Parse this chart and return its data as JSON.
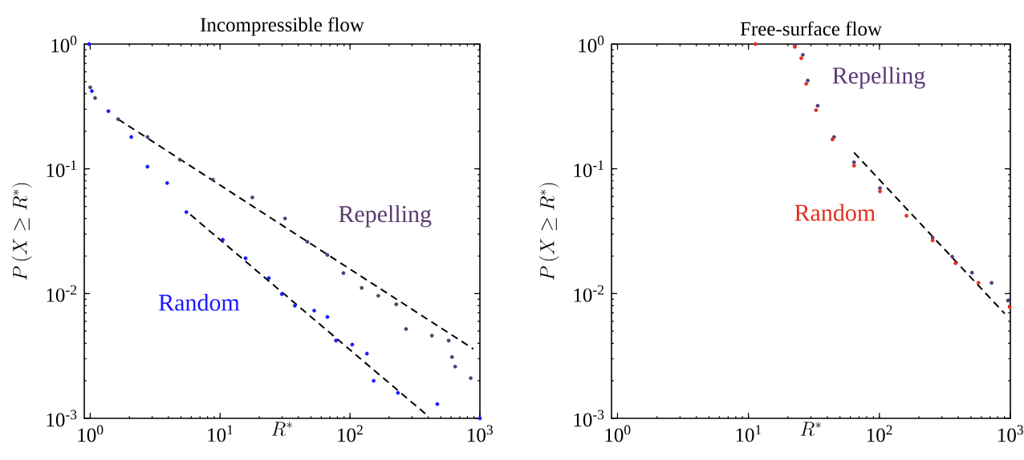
{
  "chart_data": [
    {
      "type": "scatter",
      "title": "Incompressible flow",
      "xlabel": "R^*",
      "ylabel": "P\\left(X \\geq R^*\\right)",
      "log": "xy",
      "grid": false,
      "legend": false,
      "marker": "circle",
      "xlim": [
        0.9,
        1000
      ],
      "ylim": [
        0.001,
        1
      ],
      "xticks": [
        {
          "value": 1,
          "label": "10$^{0}$"
        },
        {
          "value": 10,
          "label": "10$^{1}$"
        },
        {
          "value": 100,
          "label": "10$^{2}$"
        },
        {
          "value": 1000,
          "label": "10$^{3}$"
        }
      ],
      "yticks": [
        {
          "value": 0.001,
          "label": "10$^{-3}$"
        },
        {
          "value": 0.01,
          "label": "10$^{-2}$"
        },
        {
          "value": 0.1,
          "label": "10$^{-1}$"
        },
        {
          "value": 1,
          "label": "10$^{0}$"
        }
      ],
      "series": [
        {
          "name": "Repelling",
          "color": "#5a3a6e",
          "x": [
            1.0,
            1.09,
            1.64,
            2.76,
            4.9,
            8.8,
            17.7,
            31.6,
            47,
            67,
            89,
            123,
            165,
            227,
            270,
            427,
            575,
            610,
            645,
            850
          ],
          "values": [
            0.45,
            0.37,
            0.25,
            0.18,
            0.118,
            0.082,
            0.059,
            0.04,
            0.026,
            0.0204,
            0.0146,
            0.0111,
            0.0096,
            0.0082,
            0.0052,
            0.0046,
            0.0042,
            0.0031,
            0.0026,
            0.0021
          ]
        },
        {
          "name": "Random",
          "color": "#1a1aff",
          "x": [
            0.98,
            1.03,
            1.38,
            2.07,
            2.76,
            3.91,
            5.5,
            10.5,
            15.7,
            23.7,
            29.9,
            37.6,
            53,
            67,
            78,
            104,
            135,
            152,
            234,
            470,
            1000
          ],
          "values": [
            1,
            0.42,
            0.29,
            0.18,
            0.104,
            0.077,
            0.045,
            0.027,
            0.0192,
            0.0133,
            0.0099,
            0.008,
            0.0073,
            0.0065,
            0.0042,
            0.0039,
            0.0033,
            0.002,
            0.0016,
            0.0013,
            0.001
          ]
        },
        {
          "type": "line",
          "color": "#000000",
          "line_style": "dashed",
          "marker": "none",
          "x": [
            1.64,
            891
          ],
          "values": [
            0.25,
            0.0036
          ]
        },
        {
          "type": "line",
          "color": "#000000",
          "line_style": "dashed",
          "marker": "none",
          "x": [
            5.9,
            384
          ],
          "values": [
            0.043,
            0.00108
          ]
        }
      ]
    },
    {
      "type": "scatter",
      "title": "Free-surface flow",
      "xlabel": "R^*",
      "ylabel": "P\\left(X \\geq R^*\\right)",
      "log": "xy",
      "grid": false,
      "legend": false,
      "marker": "circle",
      "xlim": [
        0.9,
        1000
      ],
      "ylim": [
        0.001,
        1
      ],
      "xticks": [
        {
          "value": 1,
          "label": "10$^{0}$"
        },
        {
          "value": 10,
          "label": "10$^{1}$"
        },
        {
          "value": 100,
          "label": "10$^{2}$"
        },
        {
          "value": 1000,
          "label": "10$^{3}$"
        }
      ],
      "yticks": [
        {
          "value": 0.001,
          "label": "10$^{-3}$"
        },
        {
          "value": 0.01,
          "label": "10$^{-2}$"
        },
        {
          "value": 0.1,
          "label": "10$^{-1}$"
        },
        {
          "value": 1,
          "label": "10$^{0}$"
        }
      ],
      "series": [
        {
          "name": "Repelling",
          "color": "#5b3a78",
          "x": [
            22.6,
            26,
            28.4,
            33.8,
            45,
            64,
            101,
            255,
            360,
            509,
            719,
            960
          ],
          "values": [
            0.98,
            0.82,
            0.51,
            0.32,
            0.18,
            0.113,
            0.07,
            0.028,
            0.0198,
            0.0147,
            0.0122,
            0.0088
          ]
        },
        {
          "name": "Random",
          "color": "#e0301e",
          "x": [
            11.3,
            22.6,
            25.3,
            27.6,
            32.8,
            43.8,
            64,
            101,
            161,
            255,
            381,
            571,
            988
          ],
          "values": [
            1,
            0.95,
            0.77,
            0.48,
            0.295,
            0.172,
            0.106,
            0.066,
            0.042,
            0.0267,
            0.0175,
            0.0122,
            0.0078
          ]
        },
        {
          "type": "line",
          "color": "#000000",
          "line_style": "dashed",
          "marker": "none",
          "x": [
            64,
            906
          ],
          "values": [
            0.135,
            0.0069
          ]
        }
      ]
    }
  ]
}
